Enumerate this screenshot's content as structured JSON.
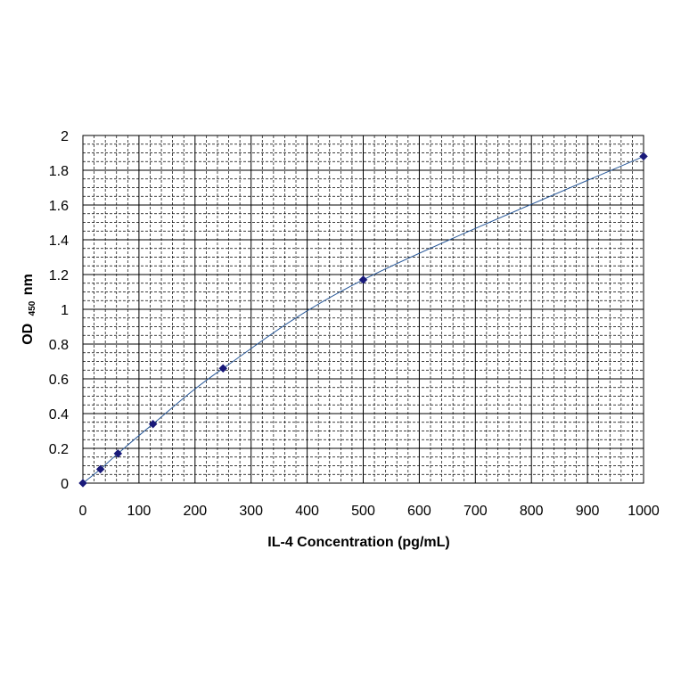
{
  "chart_data": {
    "type": "scatter",
    "title": "",
    "xlabel": "IL-4 Concentration (pg/mL)",
    "ylabel": {
      "prefix": "OD",
      "subscript": "450",
      "suffix": "nm"
    },
    "xlim": [
      0,
      1000
    ],
    "ylim": [
      0,
      2
    ],
    "x_ticks": [
      "0",
      "100",
      "200",
      "300",
      "400",
      "500",
      "600",
      "700",
      "800",
      "900",
      "1000"
    ],
    "y_ticks": [
      "0",
      "0.2",
      "0.4",
      "0.6",
      "0.8",
      "1",
      "1.2",
      "1.4",
      "1.6",
      "1.8",
      "2"
    ],
    "grid": true,
    "legend": "none",
    "series": [
      {
        "x": [
          0,
          31.25,
          62.5,
          125,
          250,
          500,
          1000
        ],
        "y": [
          0,
          0.08,
          0.17,
          0.34,
          0.66,
          1.17,
          1.88
        ],
        "trendline": "smooth curve",
        "marker": "diamond"
      }
    ],
    "colors": {
      "marker": "#1a1a7a",
      "line": "#2a5a9a",
      "grid": "#000000"
    }
  }
}
